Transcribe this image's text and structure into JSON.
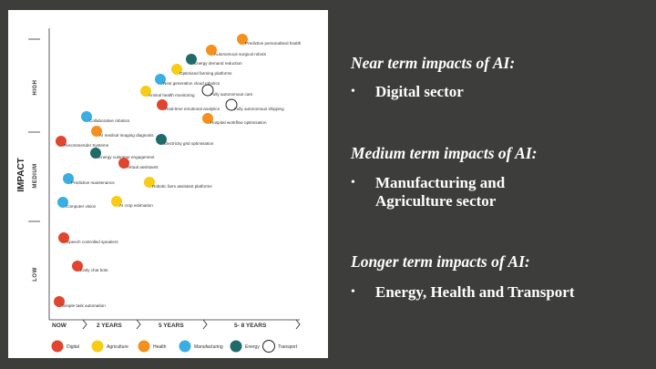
{
  "infographic": {
    "y_title": "IMPACT",
    "y_levels": [
      "HIGH",
      "MEDIUM",
      "LOW"
    ],
    "x_ticks": [
      "NOW",
      "2 YEARS",
      "5 YEARS",
      "5- 8 YEARS"
    ],
    "legend": [
      {
        "label": "Digital",
        "color": "#e0452f"
      },
      {
        "label": "Agriculture",
        "color": "#f6cc16"
      },
      {
        "label": "Health",
        "color": "#f5901e"
      },
      {
        "label": "Manufacturing",
        "color": "#3aaee0"
      },
      {
        "label": "Energy",
        "color": "#1f6b6a"
      },
      {
        "label": "Transport",
        "color": "#ffffff"
      }
    ],
    "points": [
      {
        "label": "Predictive personalised health",
        "sector": "Health"
      },
      {
        "label": "Autonomous surgical robots",
        "sector": "Health"
      },
      {
        "label": "Energy demand reduction",
        "sector": "Energy"
      },
      {
        "label": "Optimised farming platforms",
        "sector": "Agriculture"
      },
      {
        "label": "Next generation cloud robotics",
        "sector": "Manufacturing"
      },
      {
        "label": "Animal health monitoring",
        "sector": "Agriculture"
      },
      {
        "label": "Fully autonomous cars",
        "sector": "Transport"
      },
      {
        "label": "Real-time emotional analytics",
        "sector": "Digital"
      },
      {
        "label": "Fully autonomous shipping",
        "sector": "Transport"
      },
      {
        "label": "Collaborative robotics",
        "sector": "Manufacturing"
      },
      {
        "label": "Hospital workflow optimisation",
        "sector": "Health"
      },
      {
        "label": "AI medical imaging diagnosis",
        "sector": "Health"
      },
      {
        "label": "Recommender Systems",
        "sector": "Digital"
      },
      {
        "label": "Electricity grid optimisation",
        "sector": "Energy"
      },
      {
        "label": "Energy customer engagement",
        "sector": "Energy"
      },
      {
        "label": "Virtual assistants",
        "sector": "Digital"
      },
      {
        "label": "Predictive maintenance",
        "sector": "Manufacturing"
      },
      {
        "label": "Robotic farm assistant platforms",
        "sector": "Agriculture"
      },
      {
        "label": "Computer vision",
        "sector": "Manufacturing"
      },
      {
        "label": "AI crop estimation",
        "sector": "Agriculture"
      },
      {
        "label": "Speech controlled speakers",
        "sector": "Digital"
      },
      {
        "label": "Early chat bots",
        "sector": "Digital"
      },
      {
        "label": "Simple task automation",
        "sector": "Digital"
      }
    ]
  },
  "sections": [
    {
      "heading": "Near term impacts of AI:",
      "bullet": "Digital sector"
    },
    {
      "heading": "Medium term impacts of AI:",
      "bullet": "Manufacturing and Agriculture sector"
    },
    {
      "heading": "Longer term impacts of AI:",
      "bullet": "Energy, Health and Transport"
    }
  ],
  "bullet_char": "•"
}
